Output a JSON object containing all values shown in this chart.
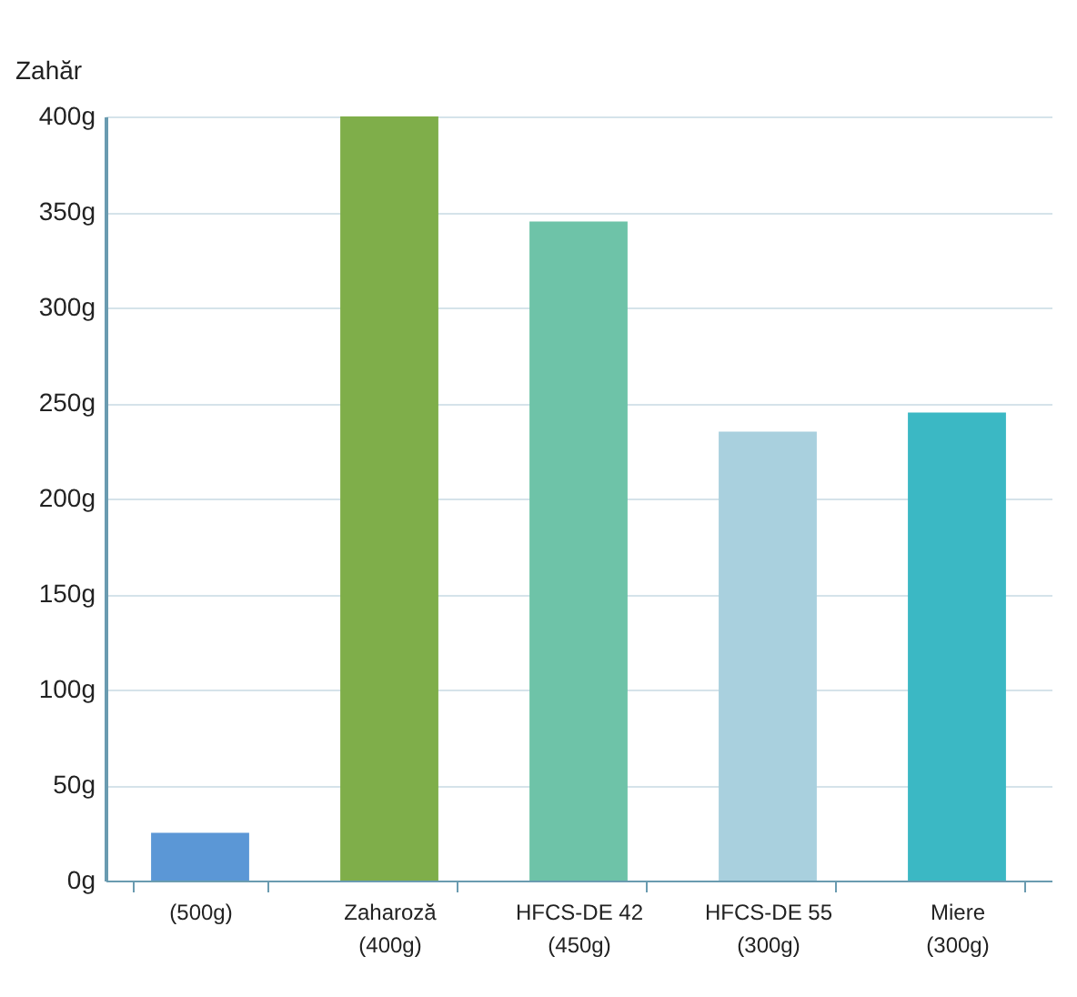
{
  "chart_data": {
    "type": "bar",
    "ylabel": "Zahăr",
    "categories": [
      "(500g)",
      "Zaharoză\n(400g)",
      "HFCS-DE 42\n(450g)",
      "HFCS-DE 55\n(300g)",
      "Miere\n(300g)"
    ],
    "values": [
      25,
      400,
      345,
      235,
      245
    ],
    "colors": [
      "#5b97d6",
      "#7fae4a",
      "#6ec3a8",
      "#a9d0de",
      "#3bb8c4"
    ],
    "ylim": [
      0,
      400
    ],
    "yticks": [
      {
        "value": 0,
        "label": "0g"
      },
      {
        "value": 50,
        "label": "50g"
      },
      {
        "value": 100,
        "label": "100g"
      },
      {
        "value": 150,
        "label": "150g"
      },
      {
        "value": 200,
        "label": "200g"
      },
      {
        "value": 250,
        "label": "250g"
      },
      {
        "value": 300,
        "label": "300g"
      },
      {
        "value": 350,
        "label": "350g"
      },
      {
        "value": 400,
        "label": "400g"
      }
    ],
    "grid": "y"
  }
}
